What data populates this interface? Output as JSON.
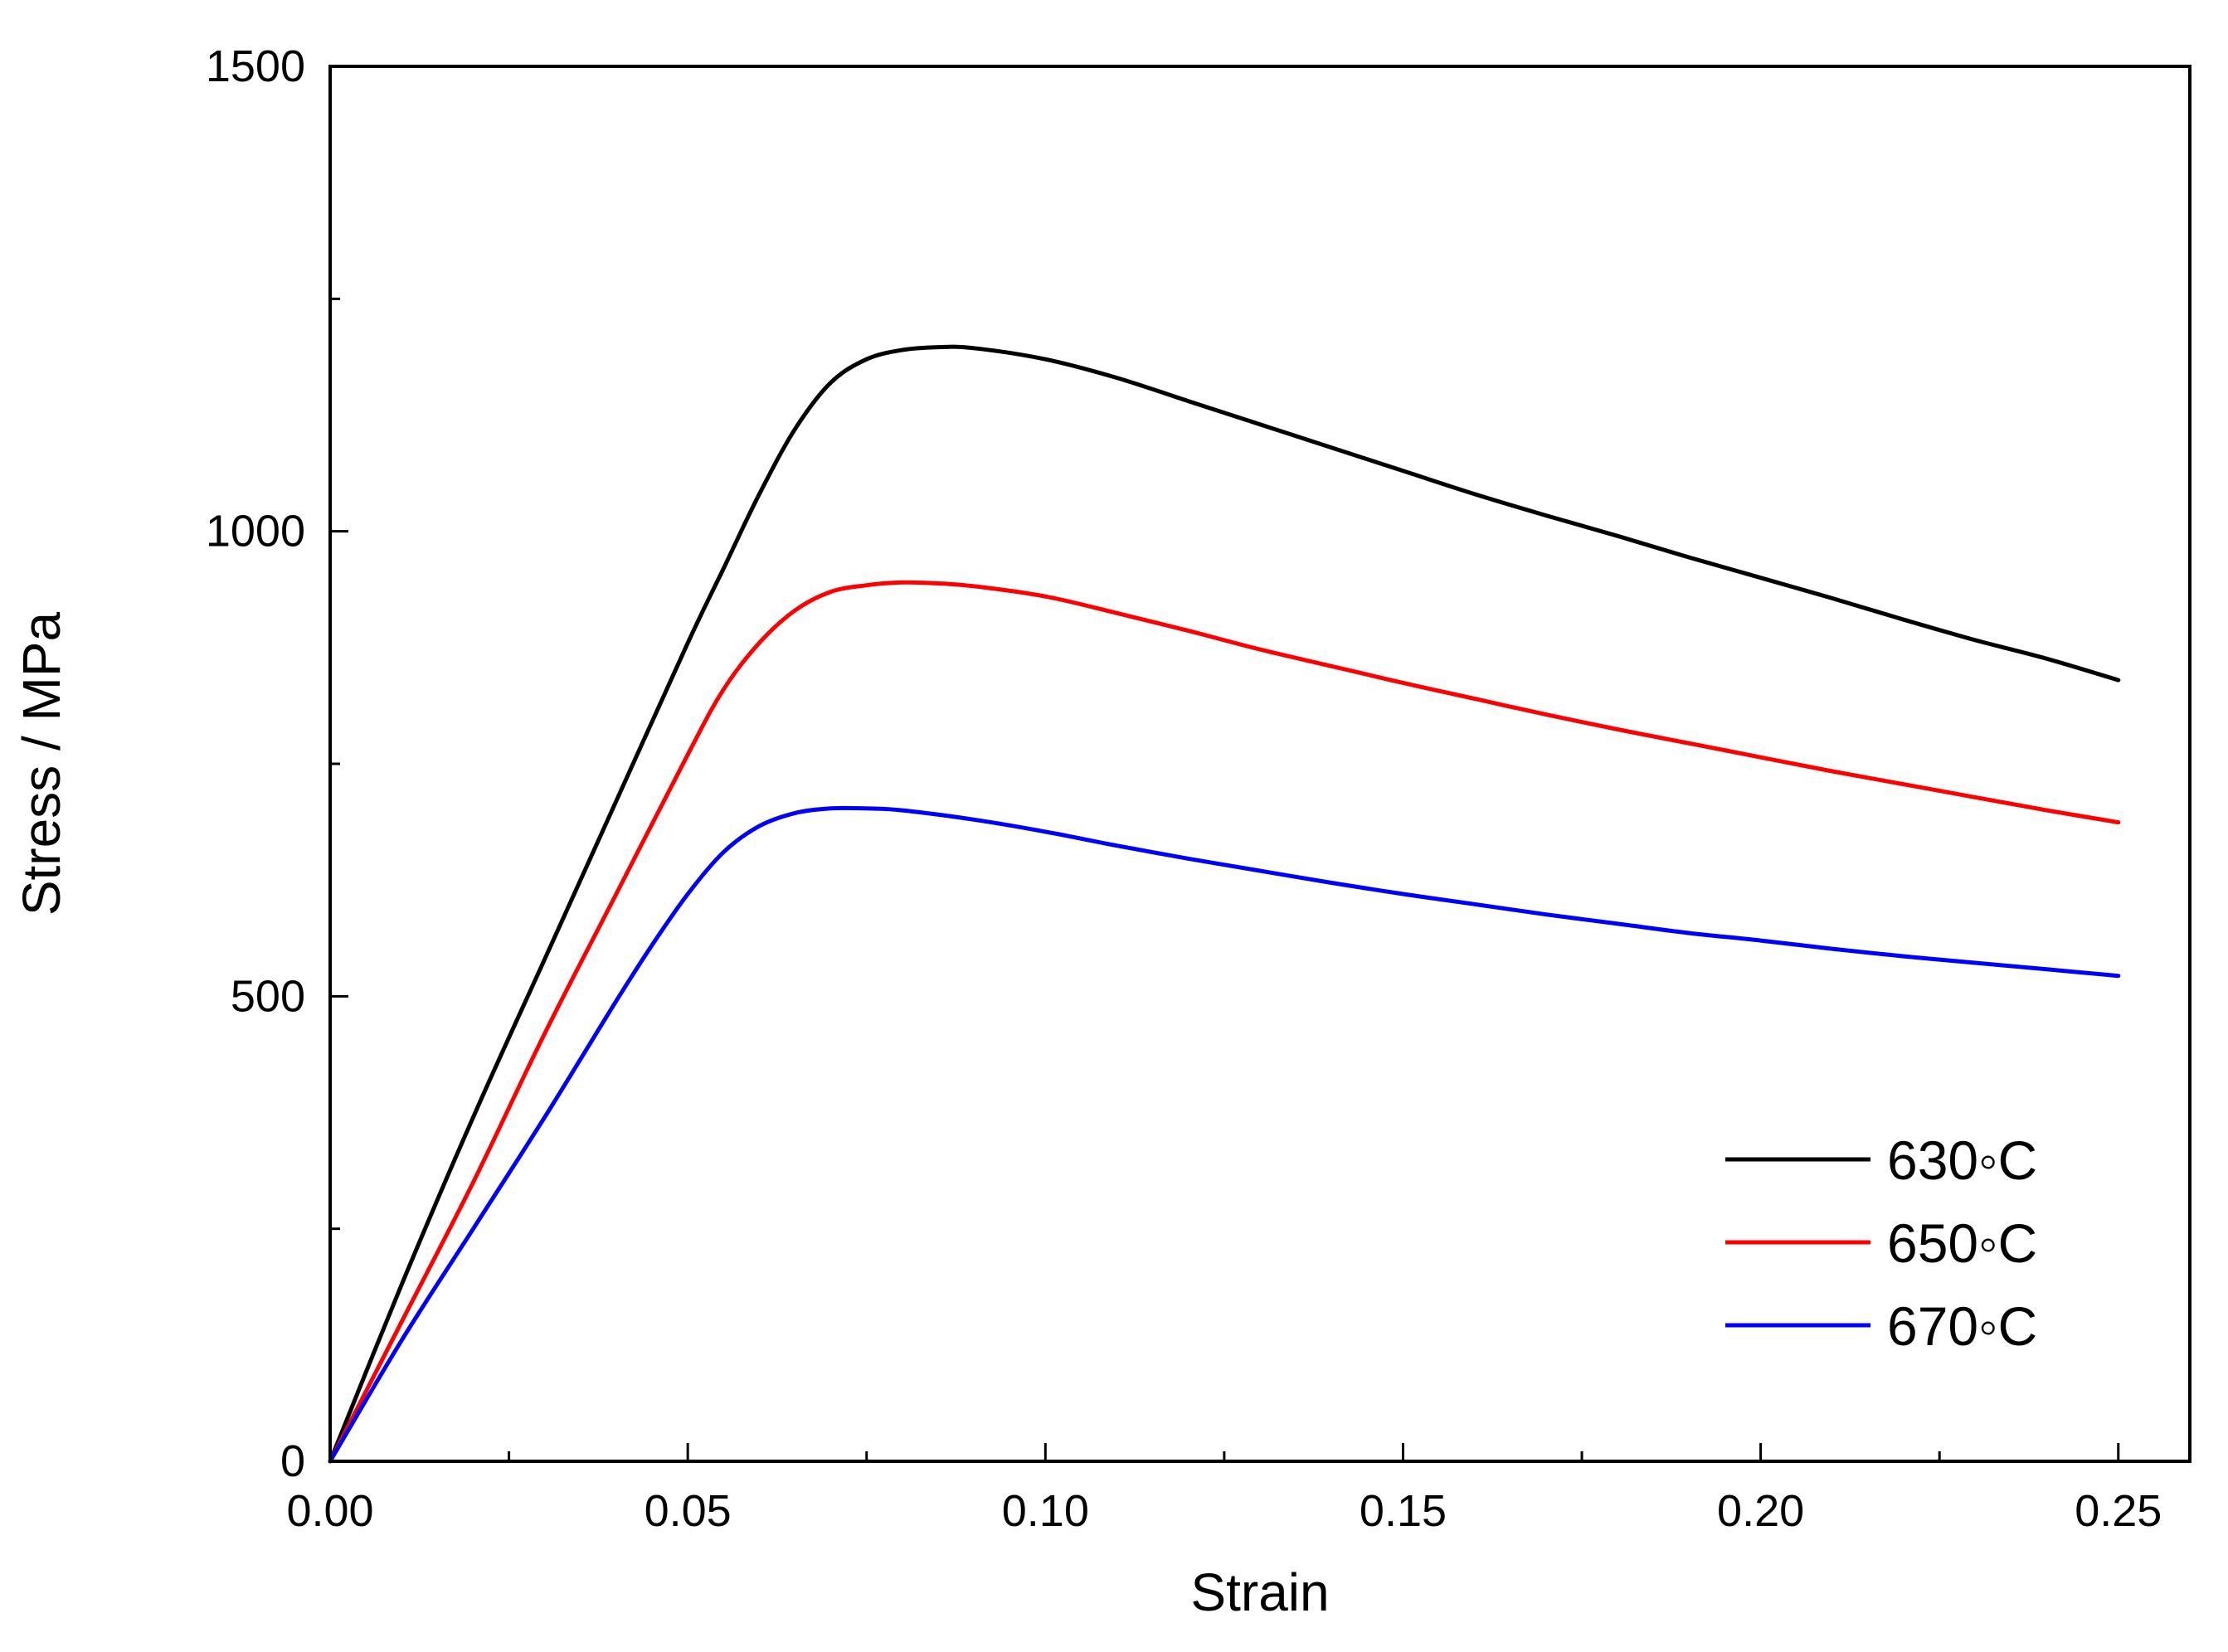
{
  "chart_data": {
    "type": "line",
    "title": "",
    "xlabel": "Strain",
    "ylabel": "Stress / MPa",
    "xlim": [
      0,
      0.26
    ],
    "ylim": [
      0,
      1500
    ],
    "x_ticks": [
      "0.00",
      "0.05",
      "0.10",
      "0.15",
      "0.20",
      "0.25"
    ],
    "x_tick_values": [
      0,
      0.05,
      0.1,
      0.15,
      0.2,
      0.25
    ],
    "x_minor_tick_values": [
      0.025,
      0.075,
      0.125,
      0.175,
      0.225
    ],
    "y_ticks": [
      "0",
      "500",
      "1000",
      "1500"
    ],
    "y_tick_values": [
      0,
      500,
      1000,
      1500
    ],
    "y_minor_tick_values": [
      250,
      750,
      1250
    ],
    "grid": false,
    "legend_position": "bottom-right",
    "series": [
      {
        "name": "630◦C",
        "color": "#000000",
        "x": [
          0,
          0.01,
          0.02,
          0.03,
          0.04,
          0.05,
          0.055,
          0.06,
          0.065,
          0.07,
          0.075,
          0.08,
          0.085,
          0.09,
          0.1,
          0.11,
          0.12,
          0.13,
          0.14,
          0.15,
          0.16,
          0.17,
          0.18,
          0.19,
          0.2,
          0.21,
          0.22,
          0.23,
          0.24,
          0.25
        ],
        "y": [
          0,
          190,
          370,
          540,
          710,
          880,
          960,
          1040,
          1110,
          1160,
          1185,
          1195,
          1198,
          1197,
          1185,
          1165,
          1140,
          1115,
          1090,
          1065,
          1040,
          1017,
          995,
          972,
          950,
          928,
          905,
          883,
          863,
          840
        ]
      },
      {
        "name": "650◦C",
        "color": "#ff0000",
        "x": [
          0,
          0.01,
          0.02,
          0.03,
          0.04,
          0.05,
          0.055,
          0.06,
          0.065,
          0.07,
          0.075,
          0.08,
          0.085,
          0.09,
          0.1,
          0.11,
          0.12,
          0.13,
          0.14,
          0.15,
          0.16,
          0.17,
          0.18,
          0.19,
          0.2,
          0.21,
          0.22,
          0.23,
          0.24,
          0.25
        ],
        "y": [
          0,
          150,
          300,
          460,
          610,
          760,
          830,
          880,
          915,
          935,
          942,
          945,
          944,
          941,
          930,
          912,
          893,
          873,
          855,
          837,
          820,
          803,
          787,
          772,
          757,
          742,
          728,
          714,
          700,
          687
        ]
      },
      {
        "name": "670◦C",
        "color": "#0000ff",
        "x": [
          0,
          0.01,
          0.02,
          0.03,
          0.04,
          0.045,
          0.05,
          0.055,
          0.06,
          0.065,
          0.07,
          0.075,
          0.08,
          0.09,
          0.1,
          0.11,
          0.12,
          0.13,
          0.14,
          0.15,
          0.16,
          0.17,
          0.18,
          0.19,
          0.2,
          0.21,
          0.22,
          0.23,
          0.24,
          0.25
        ],
        "y": [
          0,
          130,
          250,
          370,
          495,
          555,
          610,
          655,
          683,
          697,
          702,
          702,
          700,
          690,
          677,
          662,
          648,
          635,
          622,
          610,
          599,
          588,
          578,
          568,
          560,
          551,
          543,
          536,
          529,
          522
        ]
      }
    ]
  }
}
